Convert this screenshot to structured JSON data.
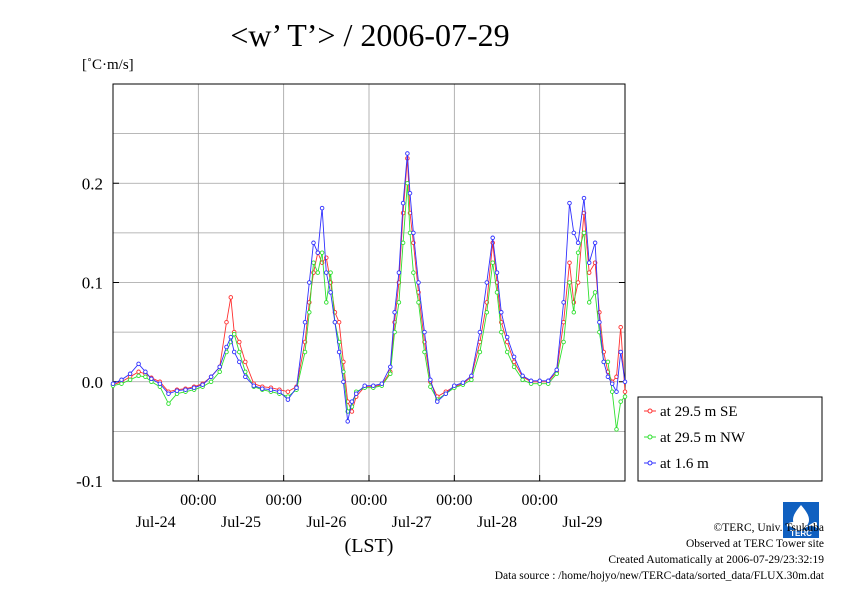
{
  "chart_data": {
    "type": "line",
    "title": "<w’ T’> / 2006-07-29",
    "unit_label": "[˚C·m/s]",
    "xlabel": "(LST)",
    "ylim": [
      -0.1,
      0.3
    ],
    "yticks": [
      {
        "value": -0.1,
        "label": "-0.1"
      },
      {
        "value": 0.0,
        "label": "0.0"
      },
      {
        "value": 0.1,
        "label": "0.1"
      },
      {
        "value": 0.2,
        "label": "0.2"
      }
    ],
    "xlim": [
      0,
      6
    ],
    "xticks": [
      {
        "value": 1,
        "time_label": "00:00",
        "date_label": "Jul-25"
      },
      {
        "value": 2,
        "time_label": "00:00",
        "date_label": "Jul-26"
      },
      {
        "value": 3,
        "time_label": "00:00",
        "date_label": "Jul-27"
      },
      {
        "value": 4,
        "time_label": "00:00",
        "date_label": "Jul-28"
      },
      {
        "value": 5,
        "time_label": "00:00",
        "date_label": "Jul-29"
      }
    ],
    "first_date_label": "Jul-24",
    "grid": true,
    "legend_position": "right",
    "series": [
      {
        "name": "at 29.5 m SE",
        "color": "#ff3030",
        "points": [
          [
            0.0,
            -0.003
          ],
          [
            0.1,
            0.0
          ],
          [
            0.2,
            0.005
          ],
          [
            0.3,
            0.01
          ],
          [
            0.38,
            0.008
          ],
          [
            0.45,
            0.004
          ],
          [
            0.55,
            0.0
          ],
          [
            0.65,
            -0.01
          ],
          [
            0.75,
            -0.008
          ],
          [
            0.85,
            -0.007
          ],
          [
            0.95,
            -0.005
          ],
          [
            1.05,
            -0.002
          ],
          [
            1.15,
            0.005
          ],
          [
            1.25,
            0.015
          ],
          [
            1.33,
            0.06
          ],
          [
            1.38,
            0.085
          ],
          [
            1.42,
            0.05
          ],
          [
            1.48,
            0.04
          ],
          [
            1.55,
            0.02
          ],
          [
            1.65,
            -0.002
          ],
          [
            1.75,
            -0.005
          ],
          [
            1.85,
            -0.006
          ],
          [
            1.95,
            -0.008
          ],
          [
            2.05,
            -0.01
          ],
          [
            2.15,
            -0.005
          ],
          [
            2.25,
            0.04
          ],
          [
            2.3,
            0.08
          ],
          [
            2.35,
            0.11
          ],
          [
            2.4,
            0.13
          ],
          [
            2.45,
            0.12
          ],
          [
            2.5,
            0.125
          ],
          [
            2.55,
            0.1
          ],
          [
            2.6,
            0.07
          ],
          [
            2.65,
            0.06
          ],
          [
            2.7,
            0.02
          ],
          [
            2.75,
            -0.02
          ],
          [
            2.8,
            -0.03
          ],
          [
            2.85,
            -0.015
          ],
          [
            2.95,
            -0.005
          ],
          [
            3.05,
            -0.005
          ],
          [
            3.15,
            -0.003
          ],
          [
            3.25,
            0.01
          ],
          [
            3.3,
            0.06
          ],
          [
            3.35,
            0.1
          ],
          [
            3.4,
            0.17
          ],
          [
            3.45,
            0.225
          ],
          [
            3.48,
            0.17
          ],
          [
            3.52,
            0.14
          ],
          [
            3.58,
            0.09
          ],
          [
            3.65,
            0.04
          ],
          [
            3.72,
            0.0
          ],
          [
            3.8,
            -0.015
          ],
          [
            3.9,
            -0.01
          ],
          [
            4.0,
            -0.005
          ],
          [
            4.1,
            -0.002
          ],
          [
            4.2,
            0.005
          ],
          [
            4.3,
            0.04
          ],
          [
            4.38,
            0.08
          ],
          [
            4.45,
            0.14
          ],
          [
            4.5,
            0.1
          ],
          [
            4.55,
            0.06
          ],
          [
            4.62,
            0.04
          ],
          [
            4.7,
            0.02
          ],
          [
            4.8,
            0.005
          ],
          [
            4.9,
            0.0
          ],
          [
            5.0,
            0.0
          ],
          [
            5.1,
            0.0
          ],
          [
            5.2,
            0.01
          ],
          [
            5.28,
            0.06
          ],
          [
            5.35,
            0.12
          ],
          [
            5.4,
            0.08
          ],
          [
            5.45,
            0.1
          ],
          [
            5.52,
            0.17
          ],
          [
            5.58,
            0.11
          ],
          [
            5.65,
            0.12
          ],
          [
            5.7,
            0.07
          ],
          [
            5.75,
            0.03
          ],
          [
            5.8,
            0.01
          ],
          [
            5.85,
            0.0
          ],
          [
            5.9,
            0.005
          ],
          [
            5.95,
            0.055
          ],
          [
            6.0,
            -0.01
          ]
        ]
      },
      {
        "name": "at 29.5 m NW",
        "color": "#30e030",
        "points": [
          [
            0.0,
            -0.004
          ],
          [
            0.1,
            -0.002
          ],
          [
            0.2,
            0.002
          ],
          [
            0.3,
            0.006
          ],
          [
            0.38,
            0.005
          ],
          [
            0.45,
            0.0
          ],
          [
            0.55,
            -0.005
          ],
          [
            0.65,
            -0.022
          ],
          [
            0.75,
            -0.012
          ],
          [
            0.85,
            -0.01
          ],
          [
            0.95,
            -0.008
          ],
          [
            1.05,
            -0.005
          ],
          [
            1.15,
            0.0
          ],
          [
            1.25,
            0.01
          ],
          [
            1.33,
            0.03
          ],
          [
            1.38,
            0.04
          ],
          [
            1.42,
            0.048
          ],
          [
            1.48,
            0.03
          ],
          [
            1.55,
            0.01
          ],
          [
            1.65,
            -0.005
          ],
          [
            1.75,
            -0.008
          ],
          [
            1.85,
            -0.01
          ],
          [
            1.95,
            -0.012
          ],
          [
            2.05,
            -0.015
          ],
          [
            2.15,
            -0.008
          ],
          [
            2.25,
            0.03
          ],
          [
            2.3,
            0.07
          ],
          [
            2.35,
            0.12
          ],
          [
            2.4,
            0.11
          ],
          [
            2.45,
            0.13
          ],
          [
            2.5,
            0.08
          ],
          [
            2.55,
            0.11
          ],
          [
            2.6,
            0.06
          ],
          [
            2.65,
            0.04
          ],
          [
            2.7,
            0.01
          ],
          [
            2.75,
            -0.03
          ],
          [
            2.8,
            -0.025
          ],
          [
            2.85,
            -0.01
          ],
          [
            2.95,
            -0.006
          ],
          [
            3.05,
            -0.006
          ],
          [
            3.15,
            -0.004
          ],
          [
            3.25,
            0.008
          ],
          [
            3.3,
            0.05
          ],
          [
            3.35,
            0.08
          ],
          [
            3.4,
            0.14
          ],
          [
            3.45,
            0.2
          ],
          [
            3.48,
            0.15
          ],
          [
            3.52,
            0.11
          ],
          [
            3.58,
            0.08
          ],
          [
            3.65,
            0.03
          ],
          [
            3.72,
            -0.005
          ],
          [
            3.8,
            -0.018
          ],
          [
            3.9,
            -0.012
          ],
          [
            4.0,
            -0.006
          ],
          [
            4.1,
            -0.003
          ],
          [
            4.2,
            0.002
          ],
          [
            4.3,
            0.03
          ],
          [
            4.38,
            0.07
          ],
          [
            4.45,
            0.12
          ],
          [
            4.5,
            0.09
          ],
          [
            4.55,
            0.05
          ],
          [
            4.62,
            0.03
          ],
          [
            4.7,
            0.015
          ],
          [
            4.8,
            0.002
          ],
          [
            4.9,
            -0.002
          ],
          [
            5.0,
            -0.002
          ],
          [
            5.1,
            -0.002
          ],
          [
            5.2,
            0.008
          ],
          [
            5.28,
            0.04
          ],
          [
            5.35,
            0.1
          ],
          [
            5.4,
            0.07
          ],
          [
            5.45,
            0.13
          ],
          [
            5.52,
            0.15
          ],
          [
            5.58,
            0.08
          ],
          [
            5.65,
            0.09
          ],
          [
            5.7,
            0.05
          ],
          [
            5.75,
            0.02
          ],
          [
            5.8,
            0.02
          ],
          [
            5.85,
            -0.01
          ],
          [
            5.9,
            -0.048
          ],
          [
            5.95,
            -0.02
          ],
          [
            6.0,
            -0.015
          ]
        ]
      },
      {
        "name": "at 1.6 m",
        "color": "#3030ff",
        "points": [
          [
            0.0,
            -0.002
          ],
          [
            0.1,
            0.002
          ],
          [
            0.2,
            0.008
          ],
          [
            0.3,
            0.018
          ],
          [
            0.38,
            0.01
          ],
          [
            0.45,
            0.003
          ],
          [
            0.55,
            -0.002
          ],
          [
            0.65,
            -0.012
          ],
          [
            0.75,
            -0.009
          ],
          [
            0.85,
            -0.008
          ],
          [
            0.95,
            -0.006
          ],
          [
            1.05,
            -0.003
          ],
          [
            1.15,
            0.005
          ],
          [
            1.25,
            0.015
          ],
          [
            1.33,
            0.035
          ],
          [
            1.38,
            0.045
          ],
          [
            1.42,
            0.03
          ],
          [
            1.48,
            0.02
          ],
          [
            1.55,
            0.005
          ],
          [
            1.65,
            -0.004
          ],
          [
            1.75,
            -0.007
          ],
          [
            1.85,
            -0.008
          ],
          [
            1.95,
            -0.01
          ],
          [
            2.05,
            -0.018
          ],
          [
            2.15,
            -0.006
          ],
          [
            2.25,
            0.06
          ],
          [
            2.3,
            0.1
          ],
          [
            2.35,
            0.14
          ],
          [
            2.4,
            0.13
          ],
          [
            2.45,
            0.175
          ],
          [
            2.5,
            0.11
          ],
          [
            2.55,
            0.09
          ],
          [
            2.6,
            0.06
          ],
          [
            2.65,
            0.03
          ],
          [
            2.7,
            0.0
          ],
          [
            2.75,
            -0.04
          ],
          [
            2.8,
            -0.02
          ],
          [
            2.85,
            -0.012
          ],
          [
            2.95,
            -0.004
          ],
          [
            3.05,
            -0.004
          ],
          [
            3.15,
            -0.002
          ],
          [
            3.25,
            0.015
          ],
          [
            3.3,
            0.07
          ],
          [
            3.35,
            0.11
          ],
          [
            3.4,
            0.18
          ],
          [
            3.45,
            0.23
          ],
          [
            3.48,
            0.19
          ],
          [
            3.52,
            0.15
          ],
          [
            3.58,
            0.1
          ],
          [
            3.65,
            0.05
          ],
          [
            3.72,
            0.002
          ],
          [
            3.8,
            -0.02
          ],
          [
            3.9,
            -0.012
          ],
          [
            4.0,
            -0.004
          ],
          [
            4.1,
            -0.001
          ],
          [
            4.2,
            0.006
          ],
          [
            4.3,
            0.05
          ],
          [
            4.38,
            0.1
          ],
          [
            4.45,
            0.145
          ],
          [
            4.5,
            0.11
          ],
          [
            4.55,
            0.07
          ],
          [
            4.62,
            0.045
          ],
          [
            4.7,
            0.025
          ],
          [
            4.8,
            0.006
          ],
          [
            4.9,
            0.001
          ],
          [
            5.0,
            0.001
          ],
          [
            5.1,
            0.001
          ],
          [
            5.2,
            0.012
          ],
          [
            5.28,
            0.08
          ],
          [
            5.35,
            0.18
          ],
          [
            5.4,
            0.15
          ],
          [
            5.45,
            0.14
          ],
          [
            5.52,
            0.185
          ],
          [
            5.58,
            0.12
          ],
          [
            5.65,
            0.14
          ],
          [
            5.7,
            0.06
          ],
          [
            5.75,
            0.02
          ],
          [
            5.8,
            0.005
          ],
          [
            5.85,
            -0.002
          ],
          [
            5.9,
            -0.01
          ],
          [
            5.95,
            0.03
          ],
          [
            6.0,
            0.0
          ]
        ]
      }
    ]
  },
  "credits": {
    "copyright": "©TERC, Univ. Tsukuba",
    "observed": "Observed at TERC Tower site",
    "created": "Created Automatically at 2006-07-29/23:32:19",
    "source": "Data source : /home/hojyo/new/TERC-data/sorted_data/FLUX.30m.dat"
  },
  "logo": {
    "text": "TERC"
  }
}
